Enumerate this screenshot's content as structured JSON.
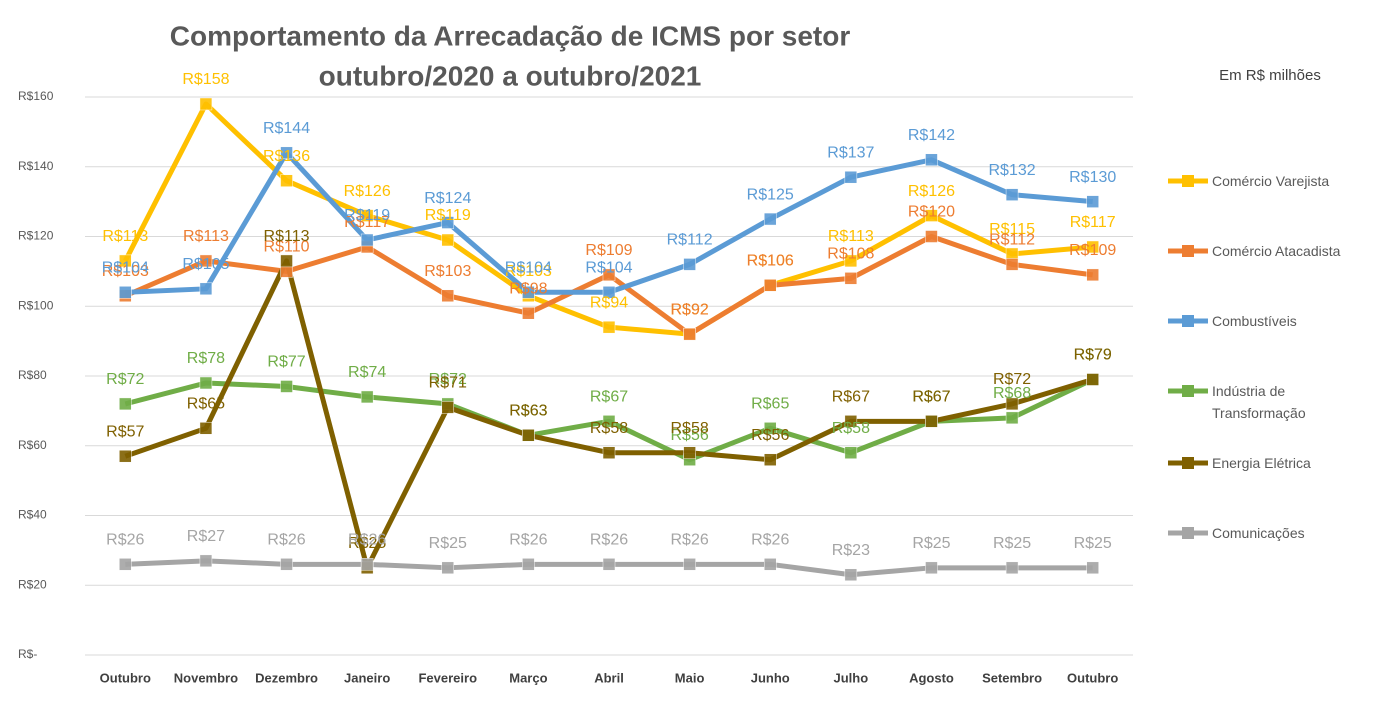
{
  "chart_data": {
    "type": "line",
    "title": "Comportamento da Arrecadação de ICMS por setor",
    "subtitle": "outubro/2020 a outubro/2021",
    "annotation": "Em R$ milhões",
    "categories": [
      "Outubro",
      "Novembro",
      "Dezembro",
      "Janeiro",
      "Fevereiro",
      "Março",
      "Abril",
      "Maio",
      "Junho",
      "Julho",
      "Agosto",
      "Setembro",
      "Outubro"
    ],
    "ylim": [
      0,
      160
    ],
    "yticks": [
      {
        "value": 0,
        "label": "R$-"
      },
      {
        "value": 20,
        "label": "R$20"
      },
      {
        "value": 40,
        "label": "R$40"
      },
      {
        "value": 60,
        "label": "R$60"
      },
      {
        "value": 80,
        "label": "R$80"
      },
      {
        "value": 100,
        "label": "R$100"
      },
      {
        "value": 120,
        "label": "R$120"
      },
      {
        "value": 140,
        "label": "R$140"
      },
      {
        "value": 160,
        "label": "R$160"
      }
    ],
    "grid": true,
    "legend": "right",
    "series": [
      {
        "name": "Comércio Varejista",
        "color": "#ffc000",
        "values": [
          113,
          158,
          136,
          126,
          119,
          103,
          94,
          92,
          106,
          113,
          126,
          115,
          117
        ],
        "value_labels": [
          "R$113",
          "R$158",
          "R$136",
          "R$126",
          "R$119",
          "R$103",
          "R$94",
          "R$92",
          "R$106",
          "R$113",
          "R$126",
          "R$115",
          "R$117"
        ]
      },
      {
        "name": "Comércio Atacadista",
        "color": "#ed7d31",
        "values": [
          103,
          113,
          110,
          117,
          103,
          98,
          109,
          92,
          106,
          108,
          120,
          112,
          109
        ],
        "value_labels": [
          "R$103",
          "R$113",
          "R$110",
          "R$117",
          "R$103",
          "R$98",
          "R$109",
          "R$92",
          "R$106",
          "R$108",
          "R$120",
          "R$112",
          "R$109"
        ]
      },
      {
        "name": "Combustíveis",
        "color": "#5b9bd5",
        "values": [
          104,
          105,
          144,
          119,
          124,
          104,
          104,
          112,
          125,
          137,
          142,
          132,
          130
        ],
        "value_labels": [
          "R$104",
          "R$105",
          "R$144",
          "R$119",
          "R$124",
          "R$104",
          "R$104",
          "R$112",
          "R$125",
          "R$137",
          "R$142",
          "R$132",
          "R$130"
        ]
      },
      {
        "name": "Indústria de Transformação",
        "color": "#70ad47",
        "values": [
          72,
          78,
          77,
          74,
          72,
          63,
          67,
          56,
          65,
          58,
          67,
          68,
          79
        ],
        "value_labels": [
          "R$72",
          "R$78",
          "R$77",
          "R$74",
          "R$72",
          "R$63",
          "R$67",
          "R$56",
          "R$65",
          "R$58",
          "R$67",
          "R$68",
          "R$79"
        ]
      },
      {
        "name": "Energia Elétrica",
        "color": "#7f6000",
        "values": [
          57,
          65,
          113,
          25,
          71,
          63,
          58,
          58,
          56,
          67,
          67,
          72,
          79
        ],
        "value_labels": [
          "R$57",
          "R$65",
          "R$113",
          "R$25",
          "R$71",
          "R$63",
          "R$58",
          "R$58",
          "R$56",
          "R$67",
          "R$67",
          "R$72",
          "R$79"
        ]
      },
      {
        "name": "Comunicações",
        "color": "#a5a5a5",
        "values": [
          26,
          27,
          26,
          26,
          25,
          26,
          26,
          26,
          26,
          23,
          25,
          25,
          25
        ],
        "value_labels": [
          "R$26",
          "R$27",
          "R$26",
          "R$26",
          "R$25",
          "R$26",
          "R$26",
          "R$26",
          "R$26",
          "R$23",
          "R$25",
          "R$25",
          "R$25"
        ]
      }
    ]
  }
}
